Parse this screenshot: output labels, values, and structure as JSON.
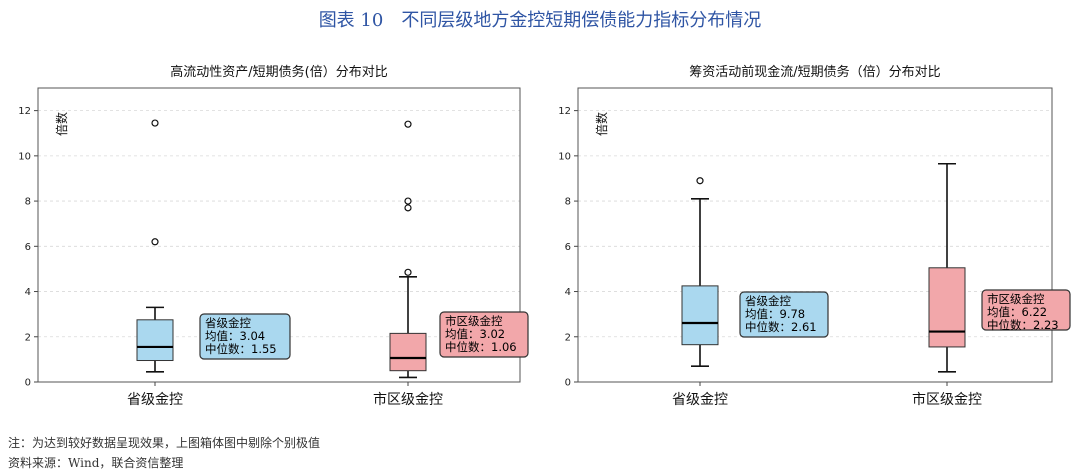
{
  "figure": {
    "title": "图表 10　不同层级地方金控短期偿债能力指标分布情况",
    "note": "注：为达到较好数据呈现效果，上图箱体图中剔除个别极值",
    "source": "资料来源：Wind，联合资信整理"
  },
  "colors": {
    "provincial": "#aad8ef",
    "city": "#f2a7aa",
    "title_blue": "#2f55a4"
  },
  "chart_data": [
    {
      "type": "box",
      "title": "高流动性资产/短期债务(倍）分布对比",
      "ylabel": "倍数",
      "ylim": [
        0,
        13
      ],
      "yticks": [
        0,
        2,
        4,
        6,
        8,
        10,
        12
      ],
      "grid": true,
      "categories": [
        "省级金控",
        "市区级金控"
      ],
      "series": [
        {
          "category": "省级金控",
          "min": 0.45,
          "q1": 0.95,
          "median": 1.55,
          "q3": 2.75,
          "max": 3.3,
          "outliers": [
            6.2,
            11.45
          ],
          "annot_title": "省级金控",
          "annot_mean": "均值：3.04",
          "annot_median": "中位数：1.55"
        },
        {
          "category": "市区级金控",
          "min": 0.2,
          "q1": 0.5,
          "median": 1.06,
          "q3": 2.15,
          "max": 4.65,
          "outliers": [
            4.85,
            7.7,
            8.0,
            11.4
          ],
          "annot_title": "市区级金控",
          "annot_mean": "均值：3.02",
          "annot_median": "中位数：1.06"
        }
      ]
    },
    {
      "type": "box",
      "title": "筹资活动前现金流/短期债务（倍）分布对比",
      "ylabel": "倍数",
      "ylim": [
        0,
        13
      ],
      "yticks": [
        0,
        2,
        4,
        6,
        8,
        10,
        12
      ],
      "grid": true,
      "categories": [
        "省级金控",
        "市区级金控"
      ],
      "series": [
        {
          "category": "省级金控",
          "min": 0.7,
          "q1": 1.65,
          "median": 2.61,
          "q3": 4.25,
          "max": 8.1,
          "outliers": [
            8.9
          ],
          "annot_title": "省级金控",
          "annot_mean": "均值：9.78",
          "annot_median": "中位数：2.61"
        },
        {
          "category": "市区级金控",
          "min": 0.45,
          "q1": 1.55,
          "median": 2.23,
          "q3": 5.05,
          "max": 9.65,
          "outliers": [],
          "annot_title": "市区级金控",
          "annot_mean": "均值：6.22",
          "annot_median": "中位数：2.23"
        }
      ]
    }
  ]
}
